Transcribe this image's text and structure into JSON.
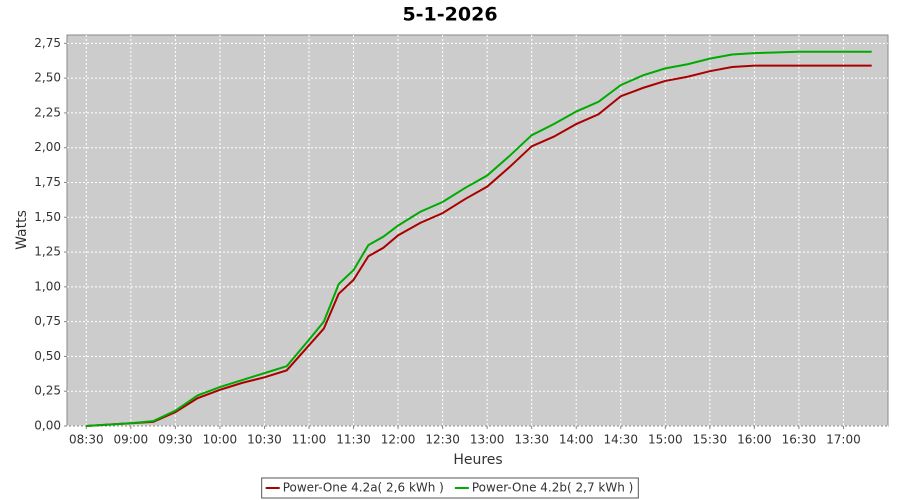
{
  "chart_data": {
    "type": "line",
    "title": "5-1-2026",
    "x_label": "Heures",
    "y_label": "Watts",
    "x": [
      "08:30",
      "09:00",
      "09:15",
      "09:30",
      "09:45",
      "10:00",
      "10:15",
      "10:30",
      "10:45",
      "11:00",
      "11:10",
      "11:20",
      "11:30",
      "11:40",
      "11:50",
      "12:00",
      "12:15",
      "12:30",
      "12:45",
      "13:00",
      "13:15",
      "13:30",
      "13:45",
      "14:00",
      "14:15",
      "14:30",
      "14:45",
      "15:00",
      "15:15",
      "15:30",
      "15:45",
      "16:00",
      "16:30",
      "17:00",
      "17:19"
    ],
    "series": [
      {
        "name": "Power-One 4.2a( 2,6 kWh )",
        "color": "#aa0000",
        "values": [
          0.0,
          0.02,
          0.03,
          0.1,
          0.2,
          0.26,
          0.31,
          0.35,
          0.4,
          0.58,
          0.7,
          0.95,
          1.05,
          1.22,
          1.28,
          1.37,
          1.46,
          1.53,
          1.63,
          1.72,
          1.86,
          2.01,
          2.08,
          2.17,
          2.24,
          2.37,
          2.43,
          2.48,
          2.51,
          2.55,
          2.58,
          2.59,
          2.59,
          2.59,
          2.59
        ]
      },
      {
        "name": "Power-One 4.2b( 2,7 kWh )",
        "color": "#00aa00",
        "values": [
          0.0,
          0.02,
          0.035,
          0.11,
          0.22,
          0.28,
          0.33,
          0.38,
          0.43,
          0.62,
          0.75,
          1.02,
          1.12,
          1.3,
          1.36,
          1.44,
          1.54,
          1.61,
          1.71,
          1.8,
          1.94,
          2.09,
          2.17,
          2.26,
          2.33,
          2.45,
          2.52,
          2.57,
          2.6,
          2.64,
          2.67,
          2.68,
          2.69,
          2.69,
          2.69
        ]
      }
    ],
    "xlim": [
      "08:17",
      "17:30"
    ],
    "xticks": [
      "08:30",
      "09:00",
      "09:30",
      "10:00",
      "10:30",
      "11:00",
      "11:30",
      "12:00",
      "12:30",
      "13:00",
      "13:30",
      "14:00",
      "14:30",
      "15:00",
      "15:30",
      "16:00",
      "16:30",
      "17:00"
    ],
    "ylim": [
      0,
      2.81
    ],
    "yticks": [
      {
        "value": 0,
        "label": "0,00"
      },
      {
        "value": 0.25,
        "label": "0,25"
      },
      {
        "value": 0.5,
        "label": "0,50"
      },
      {
        "value": 0.75,
        "label": "0,75"
      },
      {
        "value": 1,
        "label": "1,00"
      },
      {
        "value": 1.25,
        "label": "1,25"
      },
      {
        "value": 1.5,
        "label": "1,50"
      },
      {
        "value": 1.75,
        "label": "1,75"
      },
      {
        "value": 2,
        "label": "2,00"
      },
      {
        "value": 2.25,
        "label": "2,25"
      },
      {
        "value": 2.5,
        "label": "2,50"
      },
      {
        "value": 2.75,
        "label": "2,75"
      }
    ],
    "grid": true,
    "legend": "bottom"
  }
}
